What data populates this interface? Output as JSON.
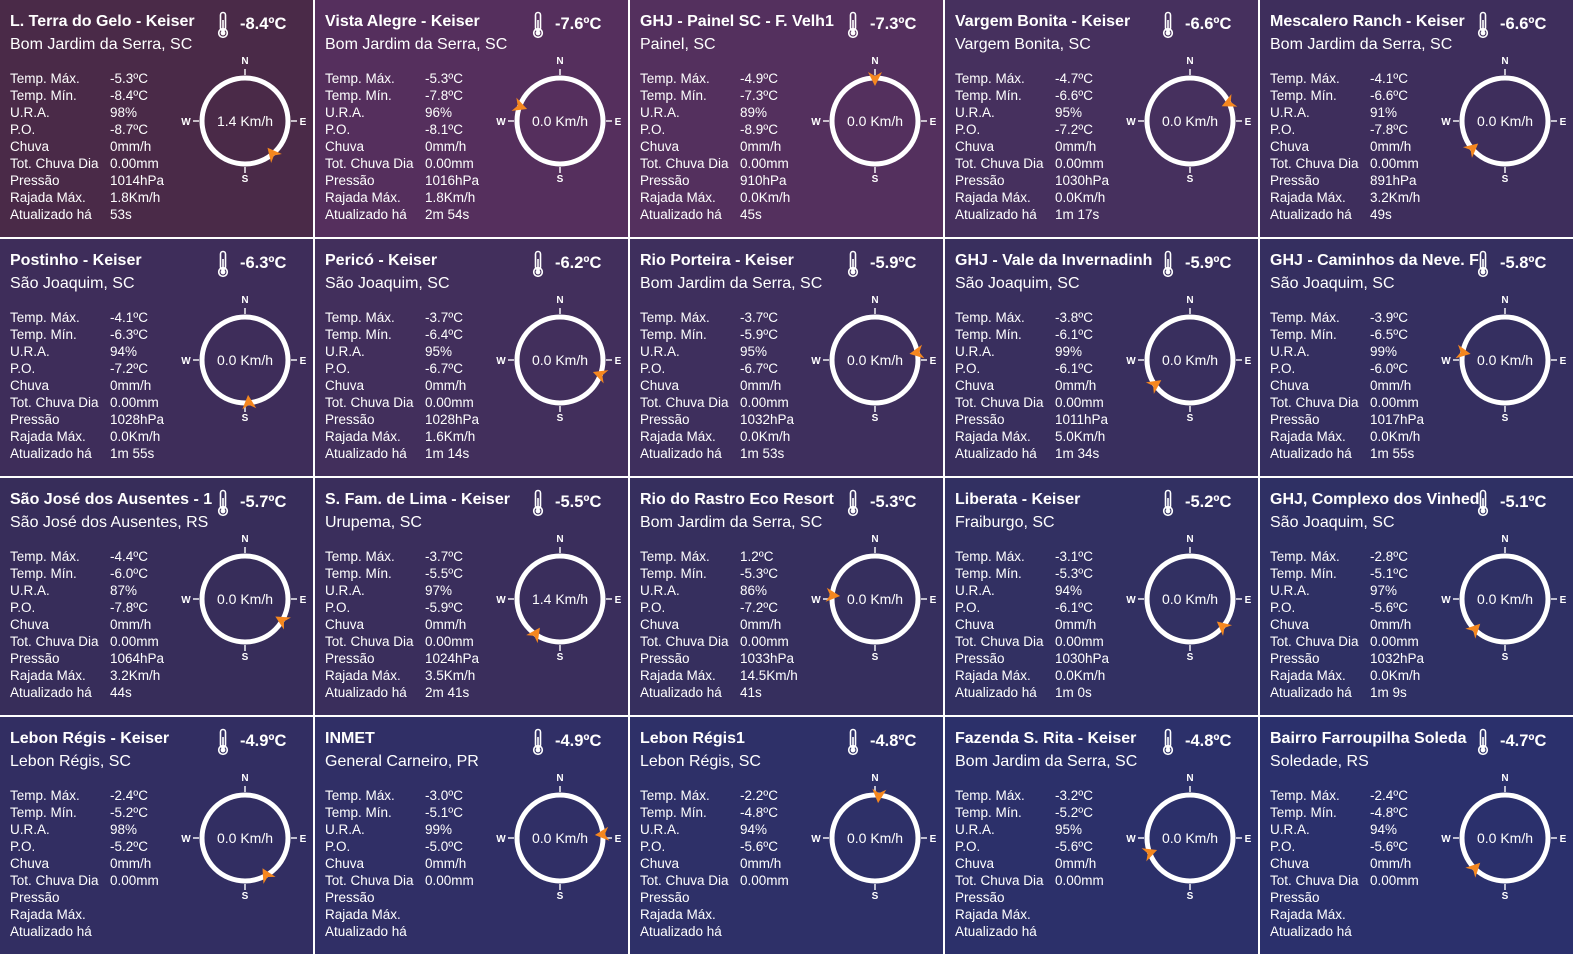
{
  "labels": {
    "max": "Temp. Máx.",
    "min": "Temp. Mín.",
    "ura": "U.R.A.",
    "po": "P.O.",
    "rain": "Chuva",
    "rain_total": "Tot. Chuva Dia",
    "pressure": "Pressão",
    "gust": "Rajada Máx.",
    "updated": "Atualizado há"
  },
  "compass_labels": {
    "n": "N",
    "e": "E",
    "s": "S",
    "w": "W"
  },
  "colors": {
    "text": "#ffffff",
    "ring": "#ffffff",
    "arrow": "#f5871f",
    "card_start": "#4d2a4a",
    "card_end": "#2e2f72"
  },
  "stations": [
    {
      "name": "L. Terra do Gelo - Keiser",
      "loc": "Bom Jardim da Serra, SC",
      "temp": "-8.4ºC",
      "max": "-5.3ºC",
      "min": "-8.4ºC",
      "ura": "98%",
      "po": "-8.7ºC",
      "rain": "0mm/h",
      "rain_total": "0.00mm",
      "pressure": "1014hPa",
      "gust": "1.8Km/h",
      "updated": "53s",
      "wind": "1.4 Km/h",
      "dir_deg": 140,
      "bg": "#4a2a48"
    },
    {
      "name": "Vista Alegre - Keiser",
      "loc": "Bom Jardim da Serra, SC",
      "temp": "-7.6ºC",
      "max": "-5.3ºC",
      "min": "-7.8ºC",
      "ura": "96%",
      "po": "-8.1ºC",
      "rain": "0mm/h",
      "rain_total": "0.00mm",
      "pressure": "1016hPa",
      "gust": "1.8Km/h",
      "updated": "2m 54s",
      "wind": "0.0 Km/h",
      "dir_deg": 290,
      "bg": "#552f5d"
    },
    {
      "name": "GHJ - Painel SC - F. Velh1",
      "loc": "Painel, SC",
      "temp": "-7.3ºC",
      "max": "-4.9ºC",
      "min": "-7.3ºC",
      "ura": "89%",
      "po": "-8.9ºC",
      "rain": "0mm/h",
      "rain_total": "0.00mm",
      "pressure": "910hPa",
      "gust": "0.0Km/h",
      "updated": "45s",
      "wind": "0.0 Km/h",
      "dir_deg": 0,
      "bg": "#54305e"
    },
    {
      "name": "Vargem Bonita - Keiser",
      "loc": "Vargem Bonita, SC",
      "temp": "-6.6ºC",
      "max": "-4.7ºC",
      "min": "-6.6ºC",
      "ura": "95%",
      "po": "-7.2ºC",
      "rain": "0mm/h",
      "rain_total": "0.00mm",
      "pressure": "1030hPa",
      "gust": "0.0Km/h",
      "updated": "1m 17s",
      "wind": "0.0 Km/h",
      "dir_deg": 65,
      "bg": "#46305e"
    },
    {
      "name": "Mescalero Ranch - Keiser",
      "loc": "Bom Jardim da Serra, SC",
      "temp": "-6.6ºC",
      "max": "-4.1ºC",
      "min": "-6.6ºC",
      "ura": "91%",
      "po": "-7.8ºC",
      "rain": "0mm/h",
      "rain_total": "0.00mm",
      "pressure": "891hPa",
      "gust": "3.2Km/h",
      "updated": "49s",
      "wind": "0.0 Km/h",
      "dir_deg": 230,
      "bg": "#3e2e5c"
    },
    {
      "name": "Postinho - Keiser",
      "loc": "São Joaquim, SC",
      "temp": "-6.3ºC",
      "max": "-4.1ºC",
      "min": "-6.3ºC",
      "ura": "94%",
      "po": "-7.2ºC",
      "rain": "0mm/h",
      "rain_total": "0.00mm",
      "pressure": "1028hPa",
      "gust": "0.0Km/h",
      "updated": "1m 55s",
      "wind": "0.0 Km/h",
      "dir_deg": 175,
      "bg": "#3e2d5a"
    },
    {
      "name": "Pericó - Keiser",
      "loc": "São Joaquim, SC",
      "temp": "-6.2ºC",
      "max": "-3.7ºC",
      "min": "-6.4ºC",
      "ura": "95%",
      "po": "-6.7ºC",
      "rain": "0mm/h",
      "rain_total": "0.00mm",
      "pressure": "1028hPa",
      "gust": "1.6Km/h",
      "updated": "1m 14s",
      "wind": "0.0 Km/h",
      "dir_deg": 110,
      "bg": "#422f5c"
    },
    {
      "name": "Rio Porteira - Keiser",
      "loc": "Bom Jardim da Serra, SC",
      "temp": "-5.9ºC",
      "max": "-3.7ºC",
      "min": "-5.9ºC",
      "ura": "95%",
      "po": "-6.7ºC",
      "rain": "0mm/h",
      "rain_total": "0.00mm",
      "pressure": "1032hPa",
      "gust": "0.0Km/h",
      "updated": "1m 53s",
      "wind": "0.0 Km/h",
      "dir_deg": 80,
      "bg": "#3e2f5d"
    },
    {
      "name": "GHJ - Vale da Invernadinh",
      "loc": "São Joaquim, SC",
      "temp": "-5.9ºC",
      "max": "-3.8ºC",
      "min": "-6.1ºC",
      "ura": "99%",
      "po": "-6.1ºC",
      "rain": "0mm/h",
      "rain_total": "0.00mm",
      "pressure": "1011hPa",
      "gust": "5.0Km/h",
      "updated": "1m 34s",
      "wind": "0.0 Km/h",
      "dir_deg": 235,
      "bg": "#392f5e"
    },
    {
      "name": "GHJ - Caminhos da Neve. F",
      "loc": "São Joaquim, SC",
      "temp": "-5.8ºC",
      "max": "-3.9ºC",
      "min": "-6.5ºC",
      "ura": "99%",
      "po": "-6.0ºC",
      "rain": "0mm/h",
      "rain_total": "0.00mm",
      "pressure": "1017hPa",
      "gust": "0.0Km/h",
      "updated": "1m 55s",
      "wind": "0.0 Km/h",
      "dir_deg": 280,
      "bg": "#352f60"
    },
    {
      "name": "São José dos Ausentes - 1",
      "loc": "São José dos Ausentes, RS",
      "temp": "-5.7ºC",
      "max": "-4.4ºC",
      "min": "-6.0ºC",
      "ura": "87%",
      "po": "-7.8ºC",
      "rain": "0mm/h",
      "rain_total": "0.00mm",
      "pressure": "1064hPa",
      "gust": "3.2Km/h",
      "updated": "44s",
      "wind": "0.0 Km/h",
      "dir_deg": 120,
      "bg": "#372d5a"
    },
    {
      "name": "S. Fam. de Lima - Keiser",
      "loc": "Urupema, SC",
      "temp": "-5.5ºC",
      "max": "-3.7ºC",
      "min": "-5.5ºC",
      "ura": "97%",
      "po": "-5.9ºC",
      "rain": "0mm/h",
      "rain_total": "0.00mm",
      "pressure": "1024hPa",
      "gust": "3.5Km/h",
      "updated": "2m 41s",
      "wind": "1.4 Km/h",
      "dir_deg": 215,
      "bg": "#3a2e5c"
    },
    {
      "name": "Rio do Rastro Eco Resort",
      "loc": "Bom Jardim da Serra, SC",
      "temp": "-5.3ºC",
      "max": "1.2ºC",
      "min": "-5.3ºC",
      "ura": "86%",
      "po": "-7.2ºC",
      "rain": "0mm/h",
      "rain_total": "0.00mm",
      "pressure": "1033hPa",
      "gust": "14.5Km/h",
      "updated": "41s",
      "wind": "0.0 Km/h",
      "dir_deg": 275,
      "bg": "#362f5e"
    },
    {
      "name": "Liberata - Keiser",
      "loc": "Fraiburgo, SC",
      "temp": "-5.2ºC",
      "max": "-3.1ºC",
      "min": "-5.3ºC",
      "ura": "94%",
      "po": "-6.1ºC",
      "rain": "0mm/h",
      "rain_total": "0.00mm",
      "pressure": "1030hPa",
      "gust": "0.0Km/h",
      "updated": "1m 0s",
      "wind": "0.0 Km/h",
      "dir_deg": 130,
      "bg": "#323062"
    },
    {
      "name": "GHJ, Complexo dos Vinhed",
      "loc": "São Joaquim, SC",
      "temp": "-5.1ºC",
      "max": "-2.8ºC",
      "min": "-5.1ºC",
      "ura": "97%",
      "po": "-5.6ºC",
      "rain": "0mm/h",
      "rain_total": "0.00mm",
      "pressure": "1032hPa",
      "gust": "0.0Km/h",
      "updated": "1m 9s",
      "wind": "0.0 Km/h",
      "dir_deg": 225,
      "bg": "#2f3064"
    },
    {
      "name": "Lebon Régis - Keiser",
      "loc": "Lebon Régis, SC",
      "temp": "-4.9ºC",
      "max": "-2.4ºC",
      "min": "-5.2ºC",
      "ura": "98%",
      "po": "-5.2ºC",
      "rain": "0mm/h",
      "rain_total": "0.00mm",
      "pressure": "",
      "gust": "",
      "updated": "",
      "wind": "0.0 Km/h",
      "dir_deg": 150,
      "bg": "#322e62"
    },
    {
      "name": "INMET",
      "loc": "General Carneiro, PR",
      "temp": "-4.9ºC",
      "max": "-3.0ºC",
      "min": "-5.1ºC",
      "ura": "99%",
      "po": "-5.0ºC",
      "rain": "0mm/h",
      "rain_total": "0.00mm",
      "pressure": "",
      "gust": "",
      "updated": "",
      "wind": "0.0 Km/h",
      "dir_deg": 85,
      "bg": "#302f66"
    },
    {
      "name": "Lebon Régis1",
      "loc": "Lebon Régis, SC",
      "temp": "-4.8ºC",
      "max": "-2.2ºC",
      "min": "-4.8ºC",
      "ura": "94%",
      "po": "-5.6ºC",
      "rain": "0mm/h",
      "rain_total": "0.00mm",
      "pressure": "",
      "gust": "",
      "updated": "",
      "wind": "0.0 Km/h",
      "dir_deg": 5,
      "bg": "#2e3068"
    },
    {
      "name": "Fazenda S. Rita - Keiser",
      "loc": "Bom Jardim da Serra, SC",
      "temp": "-4.8ºC",
      "max": "-3.2ºC",
      "min": "-5.2ºC",
      "ura": "95%",
      "po": "-5.6ºC",
      "rain": "0mm/h",
      "rain_total": "0.00mm",
      "pressure": "",
      "gust": "",
      "updated": "",
      "wind": "0.0 Km/h",
      "dir_deg": 250,
      "bg": "#2c306a"
    },
    {
      "name": "Bairro Farroupilha Soleda",
      "loc": "Soledade, RS",
      "temp": "-4.7ºC",
      "max": "-2.4ºC",
      "min": "-4.8ºC",
      "ura": "94%",
      "po": "-5.6ºC",
      "rain": "0mm/h",
      "rain_total": "0.00mm",
      "pressure": "",
      "gust": "",
      "updated": "",
      "wind": "0.0 Km/h",
      "dir_deg": 225,
      "bg": "#2b306c"
    }
  ]
}
